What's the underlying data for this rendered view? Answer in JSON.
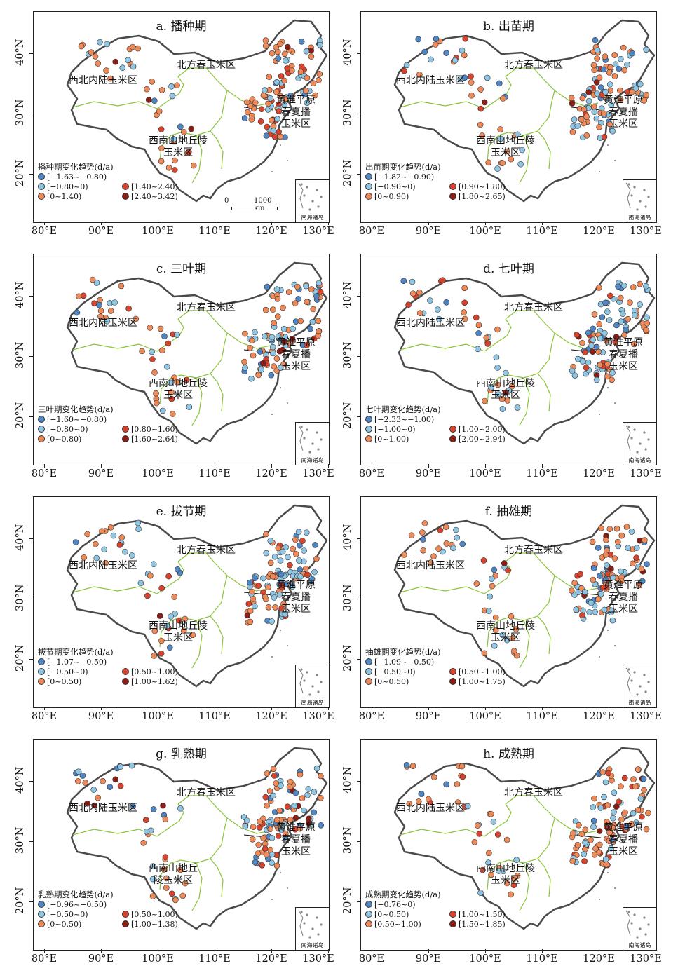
{
  "x_ticks": [
    "80°E",
    "90°E",
    "100°E",
    "110°E",
    "120°E",
    "130°E"
  ],
  "y_ticks": [
    "40°N",
    "30°N",
    "20°N"
  ],
  "region_names": {
    "north": "北方春玉米区",
    "northwest": "西北内陆玉米区",
    "huanghuai": [
      "黄淮平原",
      "春夏播",
      "玉米区"
    ]
  },
  "inset_label": "南海诸岛",
  "scale_bar": {
    "zero": "0",
    "distance": "1000 km"
  },
  "colors": {
    "class1": "#4f86c3",
    "class2": "#8fc6e3",
    "class3": "#ef8a58",
    "class4": "#d8432d",
    "class5": "#8c1d14",
    "boundary": "#8ac33a",
    "outline": "#4a4a4a"
  },
  "panels": [
    {
      "title": "a. 播种期",
      "sw": [
        "西南山地丘陵",
        "玉米区"
      ],
      "legend_title": "播种期变化趋势(d/a)",
      "legend": [
        "[−1.63~−0.80)",
        "[−0.80~0)",
        "[0~1.40)",
        "[1.40~2.40)",
        "[2.40~3.42)"
      ],
      "scale": true
    },
    {
      "title": "b. 出苗期",
      "sw": [
        "西南山地丘陵",
        "玉米区"
      ],
      "legend_title": "出苗期变化趋势(d/a)",
      "legend": [
        "[−1.82~−0.90)",
        "[−0.90~0)",
        "[0~0.90)",
        "[0.90~1.80)",
        "[1.80~2.65)"
      ],
      "scale": false
    },
    {
      "title": "c. 三叶期",
      "sw": [
        "西南山地丘陵",
        "玉米区"
      ],
      "legend_title": "三叶期变化趋势(d/a)",
      "legend": [
        "[−1.60~−0.80)",
        "[−0.80~0)",
        "[0~0.80)",
        "[0.80~1.60)",
        "[1.60~2.64)"
      ],
      "scale": false
    },
    {
      "title": "d. 七叶期",
      "sw": [
        "西南山地丘陵",
        "玉米区"
      ],
      "legend_title": "七叶期变化趋势(d/a)",
      "legend": [
        "[−2.33~−1.00)",
        "[−1.00~0)",
        "[0~1.00)",
        "[1.00~2.00)",
        "[2.00~2.94)"
      ],
      "scale": false
    },
    {
      "title": "e. 拔节期",
      "sw": [
        "西南山地丘陵",
        "玉米区"
      ],
      "legend_title": "拔节期变化趋势(d/a)",
      "legend": [
        "[−1.07~−0.50)",
        "[−0.50~0)",
        "[0~0.50)",
        "[0.50~1.00)",
        "[1.00~1.62)"
      ],
      "scale": false
    },
    {
      "title": "f. 抽雄期",
      "sw": [
        "西南山地丘陵",
        "玉米区"
      ],
      "legend_title": "抽雄期变化趋势(d/a)",
      "legend": [
        "[−1.09~−0.50)",
        "[−0.50~0)",
        "[0~0.50)",
        "[0.50~1.00)",
        "[1.00~1.75)"
      ],
      "scale": false
    },
    {
      "title": "g. 乳熟期",
      "sw": [
        "西南山地丘",
        "陵玉米区"
      ],
      "legend_title": "乳熟期变化趋势(d/a)",
      "legend": [
        "[−0.96~−0.50)",
        "[−0.50~0)",
        "[0~0.50)",
        "[0.50~1.00)",
        "[1.00~1.38)"
      ],
      "scale": false
    },
    {
      "title": "h. 成熟期",
      "sw": [
        "西南山地丘陵",
        "玉米区"
      ],
      "legend_title": "成熟期变化趋势(d/a)",
      "legend": [
        "[−0.76~0)",
        "[0~0.50)",
        "[0.50~1.00)",
        "[1.00~1.50)",
        "[1.50~1.85)"
      ],
      "scale": false
    }
  ]
}
